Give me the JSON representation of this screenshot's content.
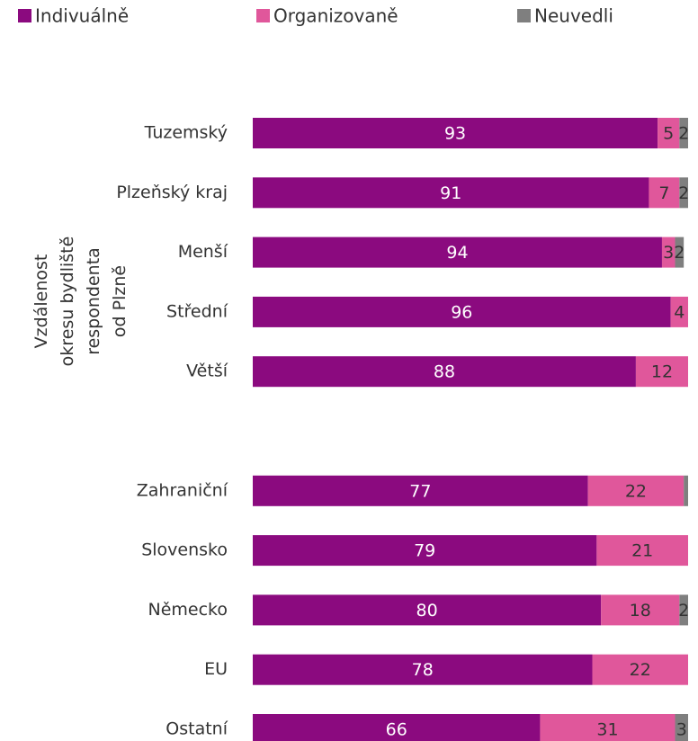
{
  "chart_data": {
    "type": "stacked-bar",
    "orientation": "horizontal",
    "y_label": [
      "Vzdálenost",
      "okresu bydliště",
      "respondenta",
      "od Plzně"
    ],
    "categories": [
      "Tuzemský",
      "Plzeňský kraj",
      "Menší",
      "Střední",
      "Větší",
      null,
      "Zahraniční",
      "Slovensko",
      "Německo",
      "EU",
      "Ostatní"
    ],
    "series": [
      {
        "name": "Indivuálně",
        "color": "#8b0a7f",
        "label_color": "#ffffff",
        "values": [
          93,
          91,
          94,
          96,
          88,
          null,
          77,
          79,
          80,
          78,
          66
        ]
      },
      {
        "name": "Organizovaně",
        "color": "#e0579b",
        "label_color": "#333333",
        "values": [
          5,
          7,
          3,
          4,
          12,
          null,
          22,
          21,
          18,
          22,
          31
        ]
      },
      {
        "name": "Neuvedli",
        "color": "#7f7f7f",
        "label_color": "#333333",
        "values": [
          2,
          2,
          2,
          null,
          null,
          null,
          1,
          null,
          2,
          null,
          3
        ]
      }
    ],
    "xlim": [
      0,
      100
    ],
    "legend": "top"
  }
}
